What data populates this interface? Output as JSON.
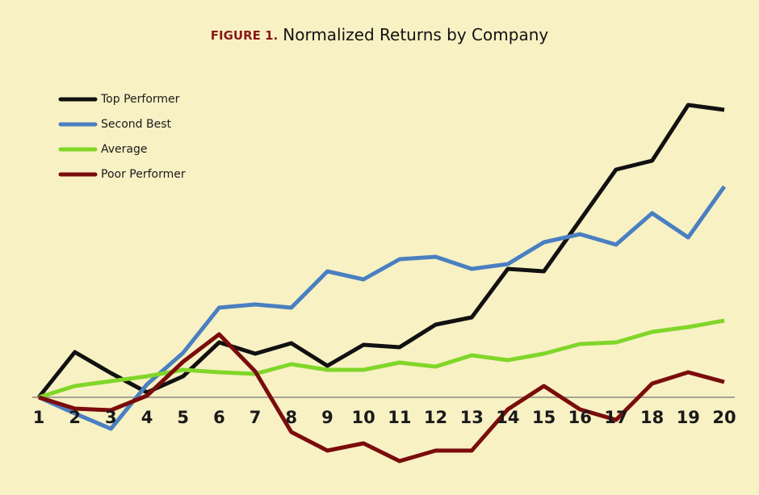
{
  "chart_data": {
    "type": "line",
    "figure_label": "FIGURE 1.",
    "title": "Normalized Returns by Company",
    "categories": [
      "1",
      "2",
      "3",
      "4",
      "5",
      "6",
      "7",
      "8",
      "9",
      "10",
      "11",
      "12",
      "13",
      "14",
      "15",
      "16",
      "17",
      "18",
      "19",
      "20"
    ],
    "series": [
      {
        "name": "Top Performer",
        "color": "#111111",
        "values": [
          0,
          5.6,
          3.0,
          0.6,
          2.6,
          6.8,
          5.4,
          6.7,
          3.9,
          6.5,
          6.2,
          9.0,
          9.9,
          15.9,
          15.6,
          21.9,
          28.2,
          29.3,
          36.2,
          35.6
        ]
      },
      {
        "name": "Second Best",
        "color": "#4a7fc1",
        "values": [
          0,
          -2.0,
          -3.9,
          1.6,
          5.5,
          11.1,
          11.5,
          11.1,
          15.6,
          14.6,
          17.1,
          17.4,
          15.9,
          16.5,
          19.2,
          20.2,
          18.9,
          22.8,
          19.8,
          26.1
        ]
      },
      {
        "name": "Average",
        "color": "#80d629",
        "values": [
          0,
          1.4,
          2.0,
          2.6,
          3.4,
          3.1,
          2.9,
          4.1,
          3.4,
          3.4,
          4.3,
          3.8,
          5.2,
          4.6,
          5.4,
          6.6,
          6.8,
          8.1,
          8.7,
          9.5
        ]
      },
      {
        "name": "Poor Performer",
        "color": "#7a0c0c",
        "values": [
          0,
          -1.4,
          -1.6,
          0.2,
          4.4,
          7.8,
          3.2,
          -4.3,
          -6.6,
          -5.7,
          -7.9,
          -6.6,
          -6.6,
          -1.5,
          1.4,
          -1.5,
          -2.8,
          1.7,
          3.1,
          1.9
        ]
      }
    ],
    "ylim": [
      -9,
      38
    ],
    "legend": "upper left"
  }
}
